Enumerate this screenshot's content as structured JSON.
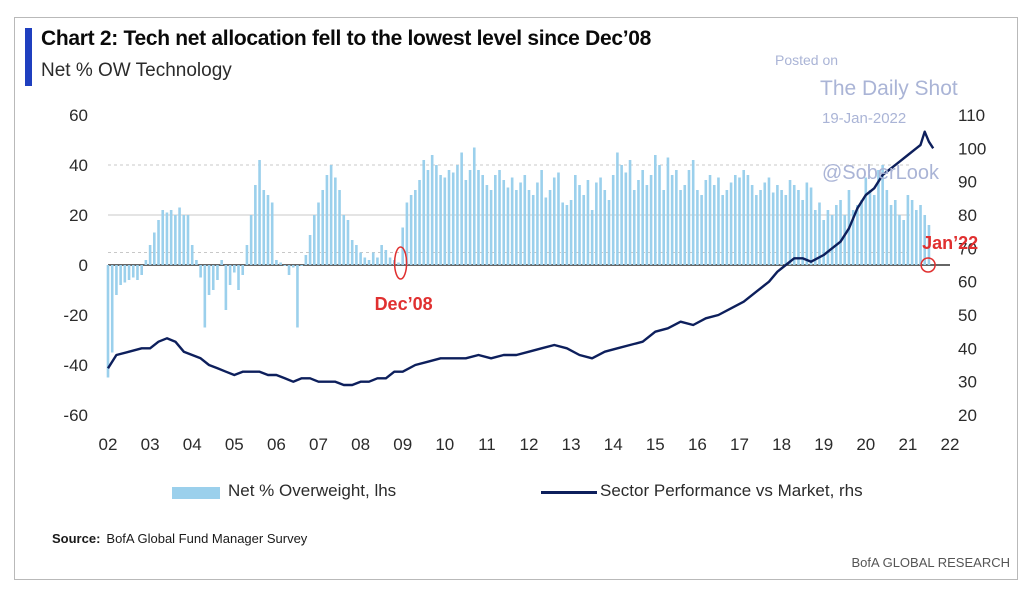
{
  "title": "Chart 2: Tech net allocation fell to the lowest level since Dec’08",
  "subtitle": "Net % OW Technology",
  "watermark": {
    "line1": "Posted on",
    "line2": "The Daily Shot",
    "line3": "19-Jan-2022",
    "line4": "@SoberLook"
  },
  "source_label": "Source:",
  "source_text": "BofA Global Fund Manager Survey",
  "brand": "BofA GLOBAL RESEARCH",
  "colors": {
    "bars": "#9bd0ec",
    "line": "#0d1f5c",
    "annotation": "#e03030",
    "title_bar": "#1f3fbf"
  },
  "chart_data": {
    "type": "bar",
    "x_tick_labels": [
      "02",
      "03",
      "04",
      "05",
      "06",
      "07",
      "08",
      "09",
      "10",
      "11",
      "12",
      "13",
      "14",
      "15",
      "16",
      "17",
      "18",
      "19",
      "20",
      "21",
      "22"
    ],
    "x_range": [
      2002,
      2022
    ],
    "left_axis": {
      "ticks": [
        60,
        40,
        20,
        0,
        -20,
        -40,
        -60
      ],
      "ylim": [
        -60,
        60
      ]
    },
    "right_axis": {
      "ticks": [
        110,
        100,
        90,
        80,
        70,
        60,
        50,
        40,
        30,
        20
      ],
      "ylim": [
        20,
        110
      ]
    },
    "legend": [
      "Net % Overweight, lhs",
      "Sector Performance vs Market, rhs"
    ],
    "legend_position": "bottom",
    "annotations": [
      {
        "text": "Dec’08",
        "x": 2008.95
      },
      {
        "text": "Jan’22",
        "x": 2022.05
      }
    ],
    "series": [
      {
        "name": "Net % Overweight, lhs",
        "type": "bar",
        "axis": "left",
        "points": [
          [
            2002.0,
            -45
          ],
          [
            2002.1,
            -35
          ],
          [
            2002.2,
            -12
          ],
          [
            2002.3,
            -8
          ],
          [
            2002.4,
            -7
          ],
          [
            2002.5,
            -6
          ],
          [
            2002.6,
            -5
          ],
          [
            2002.7,
            -6
          ],
          [
            2002.8,
            -4
          ],
          [
            2002.9,
            2
          ],
          [
            2003.0,
            8
          ],
          [
            2003.1,
            13
          ],
          [
            2003.2,
            18
          ],
          [
            2003.3,
            22
          ],
          [
            2003.4,
            21
          ],
          [
            2003.5,
            22
          ],
          [
            2003.6,
            20
          ],
          [
            2003.7,
            23
          ],
          [
            2003.8,
            20
          ],
          [
            2003.9,
            20
          ],
          [
            2004.0,
            8
          ],
          [
            2004.1,
            2
          ],
          [
            2004.2,
            -5
          ],
          [
            2004.3,
            -25
          ],
          [
            2004.4,
            -12
          ],
          [
            2004.5,
            -10
          ],
          [
            2004.6,
            -6
          ],
          [
            2004.7,
            2
          ],
          [
            2004.8,
            -18
          ],
          [
            2004.9,
            -8
          ],
          [
            2005.0,
            -3
          ],
          [
            2005.1,
            -10
          ],
          [
            2005.2,
            -4
          ],
          [
            2005.3,
            8
          ],
          [
            2005.4,
            20
          ],
          [
            2005.5,
            32
          ],
          [
            2005.6,
            42
          ],
          [
            2005.7,
            30
          ],
          [
            2005.8,
            28
          ],
          [
            2005.9,
            25
          ],
          [
            2006.0,
            2
          ],
          [
            2006.1,
            1
          ],
          [
            2006.2,
            0
          ],
          [
            2006.3,
            -4
          ],
          [
            2006.4,
            -1
          ],
          [
            2006.5,
            -25
          ],
          [
            2006.6,
            0
          ],
          [
            2006.7,
            4
          ],
          [
            2006.8,
            12
          ],
          [
            2006.9,
            20
          ],
          [
            2007.0,
            25
          ],
          [
            2007.1,
            30
          ],
          [
            2007.2,
            36
          ],
          [
            2007.3,
            40
          ],
          [
            2007.4,
            35
          ],
          [
            2007.5,
            30
          ],
          [
            2007.6,
            20
          ],
          [
            2007.7,
            18
          ],
          [
            2007.8,
            10
          ],
          [
            2007.9,
            8
          ],
          [
            2008.0,
            5
          ],
          [
            2008.1,
            3
          ],
          [
            2008.2,
            2
          ],
          [
            2008.3,
            5
          ],
          [
            2008.4,
            3
          ],
          [
            2008.5,
            8
          ],
          [
            2008.6,
            6
          ],
          [
            2008.7,
            3
          ],
          [
            2008.8,
            2
          ],
          [
            2008.9,
            1
          ],
          [
            2009.0,
            15
          ],
          [
            2009.1,
            25
          ],
          [
            2009.2,
            28
          ],
          [
            2009.3,
            30
          ],
          [
            2009.4,
            34
          ],
          [
            2009.5,
            42
          ],
          [
            2009.6,
            38
          ],
          [
            2009.7,
            44
          ],
          [
            2009.8,
            40
          ],
          [
            2009.9,
            36
          ],
          [
            2010.0,
            35
          ],
          [
            2010.1,
            38
          ],
          [
            2010.2,
            37
          ],
          [
            2010.3,
            40
          ],
          [
            2010.4,
            45
          ],
          [
            2010.5,
            34
          ],
          [
            2010.6,
            38
          ],
          [
            2010.7,
            47
          ],
          [
            2010.8,
            38
          ],
          [
            2010.9,
            36
          ],
          [
            2011.0,
            32
          ],
          [
            2011.1,
            30
          ],
          [
            2011.2,
            36
          ],
          [
            2011.3,
            38
          ],
          [
            2011.4,
            34
          ],
          [
            2011.5,
            31
          ],
          [
            2011.6,
            35
          ],
          [
            2011.7,
            30
          ],
          [
            2011.8,
            33
          ],
          [
            2011.9,
            36
          ],
          [
            2012.0,
            30
          ],
          [
            2012.1,
            28
          ],
          [
            2012.2,
            33
          ],
          [
            2012.3,
            38
          ],
          [
            2012.4,
            27
          ],
          [
            2012.5,
            30
          ],
          [
            2012.6,
            35
          ],
          [
            2012.7,
            37
          ],
          [
            2012.8,
            25
          ],
          [
            2012.9,
            24
          ],
          [
            2013.0,
            26
          ],
          [
            2013.1,
            36
          ],
          [
            2013.2,
            32
          ],
          [
            2013.3,
            28
          ],
          [
            2013.4,
            34
          ],
          [
            2013.5,
            22
          ],
          [
            2013.6,
            33
          ],
          [
            2013.7,
            35
          ],
          [
            2013.8,
            30
          ],
          [
            2013.9,
            26
          ],
          [
            2014.0,
            36
          ],
          [
            2014.1,
            45
          ],
          [
            2014.2,
            40
          ],
          [
            2014.3,
            37
          ],
          [
            2014.4,
            42
          ],
          [
            2014.5,
            30
          ],
          [
            2014.6,
            34
          ],
          [
            2014.7,
            38
          ],
          [
            2014.8,
            32
          ],
          [
            2014.9,
            36
          ],
          [
            2015.0,
            44
          ],
          [
            2015.1,
            40
          ],
          [
            2015.2,
            30
          ],
          [
            2015.3,
            43
          ],
          [
            2015.4,
            36
          ],
          [
            2015.5,
            38
          ],
          [
            2015.6,
            30
          ],
          [
            2015.7,
            32
          ],
          [
            2015.8,
            38
          ],
          [
            2015.9,
            42
          ],
          [
            2016.0,
            30
          ],
          [
            2016.1,
            28
          ],
          [
            2016.2,
            34
          ],
          [
            2016.3,
            36
          ],
          [
            2016.4,
            32
          ],
          [
            2016.5,
            35
          ],
          [
            2016.6,
            28
          ],
          [
            2016.7,
            30
          ],
          [
            2016.8,
            33
          ],
          [
            2016.9,
            36
          ],
          [
            2017.0,
            35
          ],
          [
            2017.1,
            38
          ],
          [
            2017.2,
            36
          ],
          [
            2017.3,
            32
          ],
          [
            2017.4,
            28
          ],
          [
            2017.5,
            30
          ],
          [
            2017.6,
            33
          ],
          [
            2017.7,
            35
          ],
          [
            2017.8,
            29
          ],
          [
            2017.9,
            32
          ],
          [
            2018.0,
            30
          ],
          [
            2018.1,
            28
          ],
          [
            2018.2,
            34
          ],
          [
            2018.3,
            32
          ],
          [
            2018.4,
            30
          ],
          [
            2018.5,
            26
          ],
          [
            2018.6,
            33
          ],
          [
            2018.7,
            31
          ],
          [
            2018.8,
            22
          ],
          [
            2018.9,
            25
          ],
          [
            2019.0,
            18
          ],
          [
            2019.1,
            22
          ],
          [
            2019.2,
            20
          ],
          [
            2019.3,
            24
          ],
          [
            2019.4,
            26
          ],
          [
            2019.5,
            20
          ],
          [
            2019.6,
            30
          ],
          [
            2019.7,
            22
          ],
          [
            2019.8,
            24
          ],
          [
            2019.9,
            26
          ],
          [
            2020.0,
            35
          ],
          [
            2020.1,
            30
          ],
          [
            2020.2,
            28
          ],
          [
            2020.3,
            38
          ],
          [
            2020.4,
            40
          ],
          [
            2020.5,
            30
          ],
          [
            2020.6,
            24
          ],
          [
            2020.7,
            26
          ],
          [
            2020.8,
            20
          ],
          [
            2020.9,
            18
          ],
          [
            2021.0,
            28
          ],
          [
            2021.1,
            26
          ],
          [
            2021.2,
            22
          ],
          [
            2021.3,
            24
          ],
          [
            2021.4,
            20
          ],
          [
            2021.5,
            16
          ]
        ]
      },
      {
        "name": "Sector Performance vs Market, rhs",
        "type": "line",
        "axis": "right",
        "points": [
          [
            2002.0,
            34
          ],
          [
            2002.2,
            38
          ],
          [
            2002.5,
            39
          ],
          [
            2002.8,
            40
          ],
          [
            2003.0,
            40
          ],
          [
            2003.2,
            42
          ],
          [
            2003.4,
            43
          ],
          [
            2003.6,
            42
          ],
          [
            2003.8,
            39
          ],
          [
            2004.0,
            38
          ],
          [
            2004.2,
            37
          ],
          [
            2004.4,
            35
          ],
          [
            2004.6,
            34
          ],
          [
            2004.8,
            33
          ],
          [
            2005.0,
            32
          ],
          [
            2005.2,
            33
          ],
          [
            2005.4,
            33
          ],
          [
            2005.6,
            33
          ],
          [
            2005.8,
            32
          ],
          [
            2006.0,
            32
          ],
          [
            2006.2,
            31
          ],
          [
            2006.4,
            30
          ],
          [
            2006.6,
            31
          ],
          [
            2006.8,
            31
          ],
          [
            2007.0,
            30
          ],
          [
            2007.2,
            30
          ],
          [
            2007.4,
            30
          ],
          [
            2007.6,
            29
          ],
          [
            2007.8,
            29
          ],
          [
            2008.0,
            30
          ],
          [
            2008.2,
            30
          ],
          [
            2008.4,
            31
          ],
          [
            2008.6,
            31
          ],
          [
            2008.8,
            33
          ],
          [
            2009.0,
            33
          ],
          [
            2009.3,
            35
          ],
          [
            2009.6,
            36
          ],
          [
            2009.9,
            37
          ],
          [
            2010.2,
            37
          ],
          [
            2010.5,
            37
          ],
          [
            2010.8,
            38
          ],
          [
            2011.1,
            37
          ],
          [
            2011.4,
            38
          ],
          [
            2011.7,
            38
          ],
          [
            2012.0,
            39
          ],
          [
            2012.3,
            40
          ],
          [
            2012.6,
            41
          ],
          [
            2012.9,
            40
          ],
          [
            2013.2,
            38
          ],
          [
            2013.5,
            37
          ],
          [
            2013.8,
            39
          ],
          [
            2014.1,
            40
          ],
          [
            2014.4,
            41
          ],
          [
            2014.7,
            42
          ],
          [
            2015.0,
            45
          ],
          [
            2015.3,
            46
          ],
          [
            2015.6,
            48
          ],
          [
            2015.9,
            47
          ],
          [
            2016.2,
            49
          ],
          [
            2016.5,
            50
          ],
          [
            2016.8,
            52
          ],
          [
            2017.1,
            54
          ],
          [
            2017.4,
            57
          ],
          [
            2017.7,
            60
          ],
          [
            2017.9,
            63
          ],
          [
            2018.1,
            65
          ],
          [
            2018.3,
            67
          ],
          [
            2018.5,
            67
          ],
          [
            2018.7,
            66
          ],
          [
            2019.0,
            68
          ],
          [
            2019.2,
            70
          ],
          [
            2019.4,
            72
          ],
          [
            2019.6,
            76
          ],
          [
            2019.8,
            82
          ],
          [
            2020.0,
            86
          ],
          [
            2020.2,
            88
          ],
          [
            2020.4,
            92
          ],
          [
            2020.6,
            94
          ],
          [
            2020.8,
            96
          ],
          [
            2021.0,
            98
          ],
          [
            2021.2,
            100
          ],
          [
            2021.3,
            101
          ],
          [
            2021.4,
            105
          ],
          [
            2021.5,
            102
          ],
          [
            2021.6,
            100
          ]
        ]
      }
    ]
  }
}
